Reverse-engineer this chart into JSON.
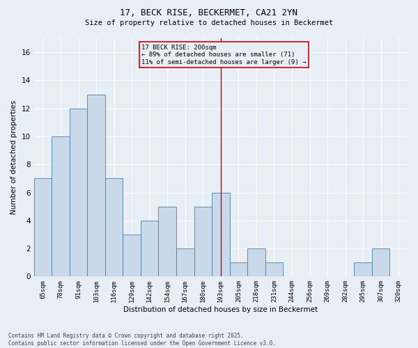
{
  "title1": "17, BECK RISE, BECKERMET, CA21 2YN",
  "title2": "Size of property relative to detached houses in Beckermet",
  "xlabel": "Distribution of detached houses by size in Beckermet",
  "ylabel": "Number of detached properties",
  "categories": [
    "65sqm",
    "78sqm",
    "91sqm",
    "103sqm",
    "116sqm",
    "129sqm",
    "142sqm",
    "154sqm",
    "167sqm",
    "180sqm",
    "193sqm",
    "205sqm",
    "218sqm",
    "231sqm",
    "244sqm",
    "256sqm",
    "269sqm",
    "282sqm",
    "295sqm",
    "307sqm",
    "320sqm"
  ],
  "values": [
    7,
    10,
    12,
    13,
    7,
    3,
    4,
    5,
    2,
    5,
    6,
    1,
    2,
    1,
    0,
    0,
    0,
    0,
    1,
    2,
    0
  ],
  "bar_color": "#c9d9ea",
  "bar_edge_color": "#4a7fa5",
  "bg_color": "#e8eef5",
  "grid_color": "#ffffff",
  "vline_index": 10,
  "vline_color": "#cc0000",
  "annotation_text": "17 BECK RISE: 200sqm\n← 89% of detached houses are smaller (71)\n11% of semi-detached houses are larger (9) →",
  "annotation_box_color": "#cc0000",
  "ylim": [
    0,
    17
  ],
  "yticks": [
    0,
    2,
    4,
    6,
    8,
    10,
    12,
    14,
    16
  ],
  "footer1": "Contains HM Land Registry data © Crown copyright and database right 2025.",
  "footer2": "Contains public sector information licensed under the Open Government Licence v3.0."
}
